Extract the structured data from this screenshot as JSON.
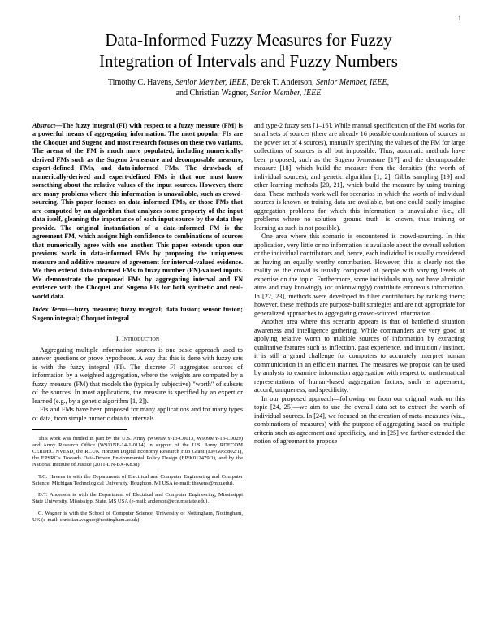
{
  "page_number": "1",
  "title_line1": "Data-Informed Fuzzy Measures for Fuzzy",
  "title_line2": "Integration of Intervals and Fuzzy Numbers",
  "authors_line1_a": "Timothy C. Havens, ",
  "authors_line1_b": "Senior Member, IEEE,",
  "authors_line1_c": " Derek T. Anderson, ",
  "authors_line1_d": "Senior Member, IEEE,",
  "authors_line2_a": "and Christian Wagner, ",
  "authors_line2_b": "Senior Member, IEEE",
  "abstract_lead": "Abstract—",
  "abstract_body": "The fuzzy integral (FI) with respect to a fuzzy measure (FM) is a powerful means of aggregating information. The most popular FIs are the Choquet and Sugeno and most research focuses on these two variants. The arena of the FM is much more populated, including numerically-derived FMs such as the Sugeno λ-measure and decomposable measure, expert-defined FMs, and data-informed FMs. The drawback of numerically-derived and expert-defined FMs is that one must know something about the relative values of the input sources. However, there are many problems where this information is unavailable, such as crowd-sourcing. This paper focuses on data-informed FMs, or those FMs that are computed by an algorithm that analyzes some property of the input data itself, gleaning the importance of each input source by the data they provide. The original instantiation of a data-informed FM is the agreement FM, which assigns high confidence to combinations of sources that numerically agree with one another. This paper extends upon our previous work in data-informed FMs by proposing the uniqueness measure and additive measure of agreement for interval-valued evidence. We then extend data-informed FMs to fuzzy number (FN)-valued inputs. We demonstrate the proposed FMs by aggregating interval and FN evidence with the Choquet and Sugeno FIs for both synthetic and real-world data.",
  "index_lead": "Index Terms—",
  "index_body": "fuzzy measure; fuzzy integral; data fusion; sensor fusion; Sugeno integral; Choquet integral",
  "section1": "I.  Introduction",
  "left_p1": "Aggregating multiple information sources is one basic approach used to answer questions or prove hypotheses. A way that this is done with fuzzy sets is with the fuzzy integral (FI). The discrete FI aggregates sources of information by a weighted aggregation, where the weights are computed by a fuzzy measure (FM) that models the (typically subjective) \"worth\" of subsets of the sources. In most applications, the measure is specified by an expert or learned (e.g., by a genetic algorithm [1, 2]).",
  "left_p2": "FIs and FMs have been proposed for many applications and for many types of data, from simple numeric data to intervals",
  "fn1": "This work was funded in part by the U.S. Army (W909MY-13-C0013, W909MY-13-C0029) and Army Research Office (W911NF-14-1-0114) in support of the U.S. Army RDECOM CERDEC NVESD, the RCUK Horizon Digital Economy Research Hub Grant (EP/G065802/1), the EPSRC's Towards Data-Driven Environmental Policy Design (EP/K012479/1), and by the National Institute of Justice (2011-DN-BX-K838).",
  "fn2": "T.C. Havens is with the Departments of Electrical and Computer Engineering and Computer Science, Michigan Technological University, Houghton, MI USA (e-mail: thavens@mtu.edu).",
  "fn3": "D.T. Anderson is with the Department of Electrical and Computer Engineering, Mississippi State University, Mississippi State, MS USA (e-mail: anderson@ece.msstate.edu).",
  "fn4": "C. Wagner is with the School of Computer Science, University of Nottingham, Nottingham, UK (e-mail: christian.wagner@nottingham.ac.uk).",
  "right_p1": "and type-2 fuzzy sets [1–16]. While manual specification of the FM works for small sets of sources (there are already 16 possible combinations of sources in the power set of 4 sources), manually specifying the values of the FM for large collections of sources is all but impossible. Thus, automatic methods have been proposed, such as the Sugeno λ-measure [17] and the decomposable measure [18], which build the measure from the densities (the worth of individual sources), and genetic algorithm [1, 2], Gibbs sampling [19] and other learning methods [20, 21], which build the measure by using training data. These methods work well for scenarios in which the worth of individual sources is known or training data are available, but one could easily imagine aggregation problems for which this information is unavailable (i.e., all problems where no solution—ground truth—is known, thus training or learning as such is not possible).",
  "right_p2": "One area where this scenario is encountered is crowd-sourcing. In this application, very little or no information is available about the overall solution or the individual contributors and, hence, each individual is usually considered as having an equally worthy contribution. However, this is clearly not the reality as the crowd is usually composed of people with varying levels of expertise on the topic. Furthermore, some individuals may not have altruistic aims and may knowingly (or unknowingly) contribute erroneous information. In [22, 23], methods were developed to filter contributors by ranking them; however, these methods are purpose-built strategies and are not appropriate for generalized approaches to aggregating crowd-sourced information.",
  "right_p3": "Another area where this scenario appears is that of battlefield situation awareness and intelligence gathering. While commanders are very good at applying relative worth to multiple sources of information by extracting qualitative features such as inflection, past experience, and intuition / instinct, it is still a grand challenge for computers to accurately interpret human communication in an efficient manner. The measures we propose can be used by analysts to examine information aggregation with respect to mathematical representations of human-based aggregation factors, such as agreement, accord, uniqueness, and specificity.",
  "right_p4": "In our proposed approach—following on from our original work on this topic [24, 25]—we aim to use the overall data set to extract the worth of individual sources. In [24], we focused on the creation of meta-measures (viz., combinations of measures) with the purpose of aggregating based on multiple criteria such as agreement and specificity, and in [25] we further extended the notion of agreement to propose"
}
